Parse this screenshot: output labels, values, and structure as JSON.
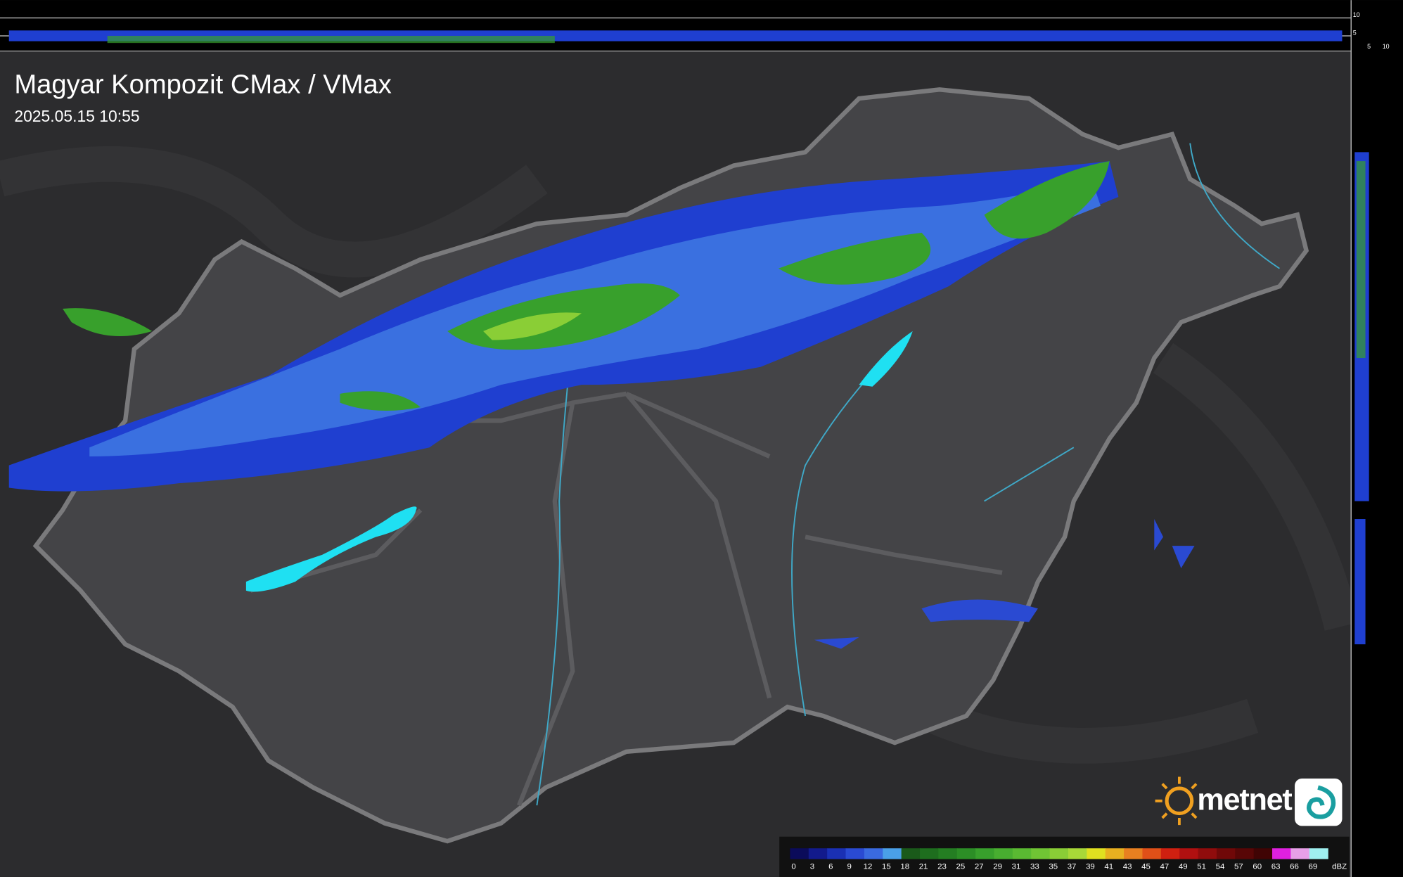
{
  "header": {
    "title": "Magyar Kompozit CMax / VMax",
    "timestamp": "2025.05.15 10:55"
  },
  "profile": {
    "top_labels": [
      "10",
      "5"
    ],
    "side_labels": [
      "5",
      "10"
    ]
  },
  "legend": {
    "ticks": [
      "0",
      "3",
      "6",
      "9",
      "12",
      "15",
      "18",
      "21",
      "23",
      "25",
      "27",
      "29",
      "31",
      "33",
      "35",
      "37",
      "39",
      "41",
      "43",
      "45",
      "47",
      "49",
      "51",
      "54",
      "57",
      "60",
      "63",
      "66",
      "69"
    ],
    "unit": "dBZ",
    "colors": [
      "#0b0b5a",
      "#121a8c",
      "#1a30b4",
      "#2a4ad2",
      "#3a6ae0",
      "#4aa0e8",
      "#1a5a1a",
      "#1e6e1e",
      "#247e22",
      "#2c8e26",
      "#38a02c",
      "#48ae30",
      "#5aba32",
      "#70c434",
      "#8ace36",
      "#a8d838",
      "#e0e020",
      "#e8b020",
      "#e88020",
      "#e05018",
      "#d02010",
      "#b01010",
      "#900c0c",
      "#700808",
      "#580606",
      "#400404",
      "#e020e0",
      "#e8a0e8",
      "#a0f0f0"
    ]
  },
  "logo": {
    "text": "metnet"
  }
}
